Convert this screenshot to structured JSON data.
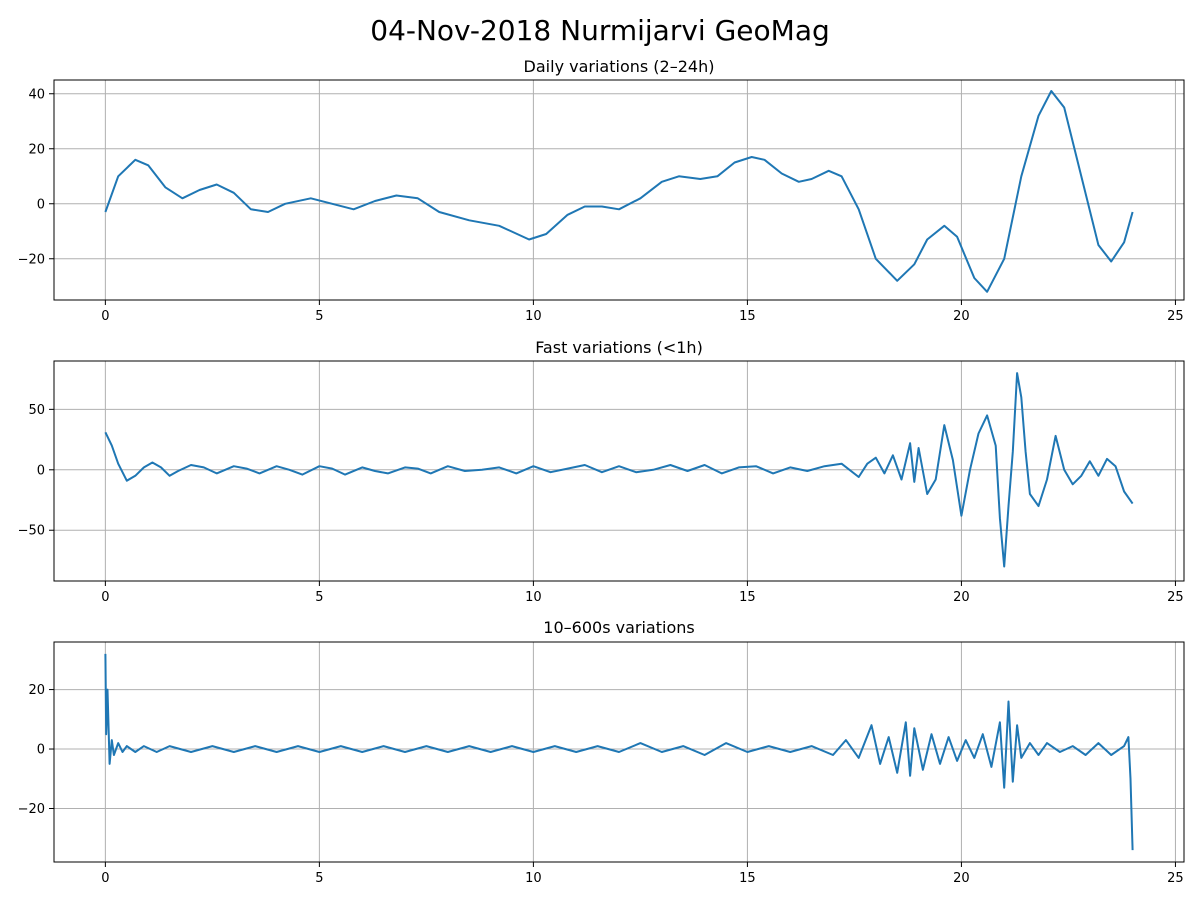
{
  "figure_title": "04-Nov-2018 Nurmijarvi GeoMag",
  "series_color": "#1f77b4",
  "grid_color": "#b0b0b0",
  "chart_data": [
    {
      "type": "line",
      "title": "Daily variations (2–24h)",
      "xlabel": "",
      "ylabel": "",
      "xlim": [
        -1.2,
        25.2
      ],
      "ylim": [
        -35,
        45
      ],
      "xticks": [
        0,
        5,
        10,
        15,
        20,
        25
      ],
      "yticks": [
        -20,
        0,
        20,
        40
      ],
      "grid": true,
      "x": [
        0,
        0.3,
        0.7,
        1.0,
        1.4,
        1.8,
        2.2,
        2.6,
        3.0,
        3.4,
        3.8,
        4.2,
        4.8,
        5.3,
        5.8,
        6.3,
        6.8,
        7.3,
        7.8,
        8.5,
        9.2,
        9.9,
        10.3,
        10.8,
        11.2,
        11.6,
        12.0,
        12.5,
        13.0,
        13.4,
        13.9,
        14.3,
        14.7,
        15.1,
        15.4,
        15.8,
        16.2,
        16.5,
        16.9,
        17.2,
        17.6,
        18.0,
        18.5,
        18.9,
        19.2,
        19.6,
        19.9,
        20.3,
        20.6,
        21.0,
        21.4,
        21.8,
        22.1,
        22.4,
        22.8,
        23.2,
        23.5,
        23.8,
        24.0
      ],
      "y": [
        -3,
        10,
        16,
        14,
        6,
        2,
        5,
        7,
        4,
        -2,
        -3,
        0,
        2,
        0,
        -2,
        1,
        3,
        2,
        -3,
        -6,
        -8,
        -13,
        -11,
        -4,
        -1,
        -1,
        -2,
        2,
        8,
        10,
        9,
        10,
        15,
        17,
        16,
        11,
        8,
        9,
        12,
        10,
        -2,
        -20,
        -28,
        -22,
        -13,
        -8,
        -12,
        -27,
        -32,
        -20,
        10,
        32,
        41,
        35,
        10,
        -15,
        -21,
        -14,
        -3
      ]
    },
    {
      "type": "line",
      "title": "Fast variations (<1h)",
      "xlabel": "",
      "ylabel": "",
      "xlim": [
        -1.2,
        25.2
      ],
      "ylim": [
        -92,
        90
      ],
      "xticks": [
        0,
        5,
        10,
        15,
        20,
        25
      ],
      "yticks": [
        -50,
        0,
        50
      ],
      "grid": true,
      "x": [
        0,
        0.15,
        0.3,
        0.5,
        0.7,
        0.9,
        1.1,
        1.3,
        1.5,
        1.7,
        2.0,
        2.3,
        2.6,
        3.0,
        3.3,
        3.6,
        4.0,
        4.3,
        4.6,
        5.0,
        5.3,
        5.6,
        6.0,
        6.3,
        6.6,
        7.0,
        7.3,
        7.6,
        8.0,
        8.4,
        8.8,
        9.2,
        9.6,
        10.0,
        10.4,
        10.8,
        11.2,
        11.6,
        12.0,
        12.4,
        12.8,
        13.2,
        13.6,
        14.0,
        14.4,
        14.8,
        15.2,
        15.6,
        16.0,
        16.4,
        16.8,
        17.2,
        17.6,
        17.8,
        18.0,
        18.2,
        18.4,
        18.6,
        18.8,
        18.9,
        19.0,
        19.2,
        19.4,
        19.6,
        19.8,
        20.0,
        20.2,
        20.4,
        20.6,
        20.8,
        20.9,
        21.0,
        21.1,
        21.2,
        21.3,
        21.4,
        21.5,
        21.6,
        21.8,
        22.0,
        22.2,
        22.4,
        22.6,
        22.8,
        23.0,
        23.2,
        23.4,
        23.6,
        23.8,
        24.0
      ],
      "y": [
        31,
        20,
        5,
        -9,
        -5,
        2,
        6,
        2,
        -5,
        -1,
        4,
        2,
        -3,
        3,
        1,
        -3,
        3,
        0,
        -4,
        3,
        1,
        -4,
        2,
        -1,
        -3,
        2,
        1,
        -3,
        3,
        -1,
        0,
        2,
        -3,
        3,
        -2,
        1,
        4,
        -2,
        3,
        -2,
        0,
        4,
        -1,
        4,
        -3,
        2,
        3,
        -3,
        2,
        -1,
        3,
        5,
        -6,
        5,
        10,
        -3,
        12,
        -8,
        22,
        -10,
        18,
        -20,
        -8,
        37,
        8,
        -38,
        0,
        30,
        45,
        20,
        -40,
        -80,
        -30,
        15,
        80,
        60,
        15,
        -20,
        -30,
        -8,
        28,
        0,
        -12,
        -5,
        7,
        -5,
        9,
        3,
        -18,
        -28
      ]
    },
    {
      "type": "line",
      "title": "10–600s variations",
      "xlabel": "",
      "ylabel": "",
      "xlim": [
        -1.2,
        25.2
      ],
      "ylim": [
        -38,
        36
      ],
      "xticks": [
        0,
        5,
        10,
        15,
        20,
        25
      ],
      "yticks": [
        -20,
        0,
        20
      ],
      "grid": true,
      "x": [
        0,
        0.02,
        0.05,
        0.1,
        0.15,
        0.2,
        0.3,
        0.4,
        0.5,
        0.7,
        0.9,
        1.2,
        1.5,
        2.0,
        2.5,
        3.0,
        3.5,
        4.0,
        4.5,
        5.0,
        5.5,
        6.0,
        6.5,
        7.0,
        7.5,
        8.0,
        8.5,
        9.0,
        9.5,
        10.0,
        10.5,
        11.0,
        11.5,
        12.0,
        12.5,
        13.0,
        13.5,
        14.0,
        14.5,
        15.0,
        15.5,
        16.0,
        16.5,
        17.0,
        17.3,
        17.6,
        17.9,
        18.1,
        18.3,
        18.5,
        18.7,
        18.8,
        18.9,
        19.1,
        19.3,
        19.5,
        19.7,
        19.9,
        20.1,
        20.3,
        20.5,
        20.7,
        20.9,
        21.0,
        21.1,
        21.2,
        21.3,
        21.4,
        21.6,
        21.8,
        22.0,
        22.3,
        22.6,
        22.9,
        23.2,
        23.5,
        23.8,
        23.9,
        23.95,
        24.0
      ],
      "y": [
        32,
        5,
        20,
        -5,
        3,
        -2,
        2,
        -1,
        1,
        -1,
        1,
        -1,
        1,
        -1,
        1,
        -1,
        1,
        -1,
        1,
        -1,
        1,
        -1,
        1,
        -1,
        1,
        -1,
        1,
        -1,
        1,
        -1,
        1,
        -1,
        1,
        -1,
        2,
        -1,
        1,
        -2,
        2,
        -1,
        1,
        -1,
        1,
        -2,
        3,
        -3,
        8,
        -5,
        4,
        -8,
        9,
        -9,
        7,
        -7,
        5,
        -5,
        4,
        -4,
        3,
        -3,
        5,
        -6,
        9,
        -13,
        16,
        -11,
        8,
        -3,
        2,
        -2,
        2,
        -1,
        1,
        -2,
        2,
        -2,
        1,
        4,
        -10,
        -34
      ]
    }
  ]
}
